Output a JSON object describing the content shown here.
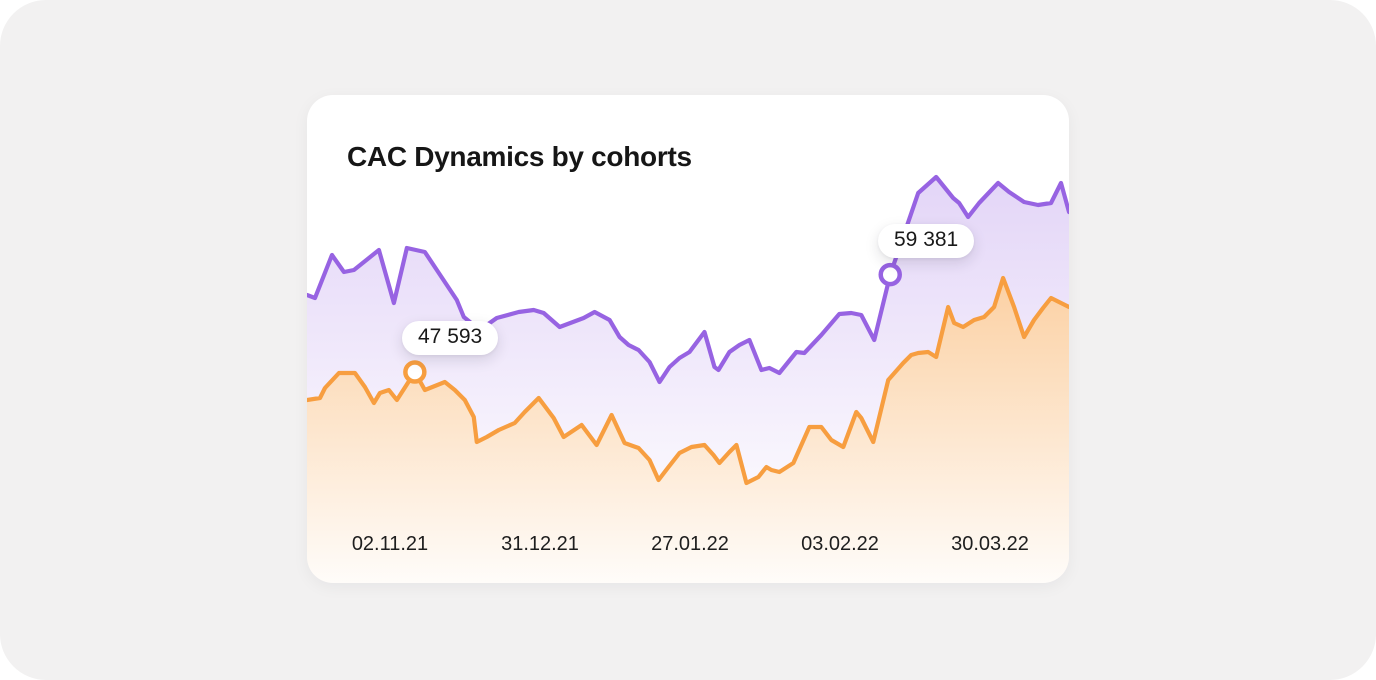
{
  "colors": {
    "page_bg": "#F2F1F1",
    "card_bg": "#FFFFFF",
    "title_text": "#161616",
    "axis_text": "#1E1E1E",
    "purple": "#9763E2",
    "orange": "#F79E40",
    "tooltip_bg": "#FFFFFF",
    "tooltip_text": "#191919"
  },
  "card": {
    "title": "CAC Dynamics by cohorts"
  },
  "chart_data": {
    "type": "area",
    "title": "CAC Dynamics by cohorts",
    "legend": "none",
    "grid": false,
    "y_axis": "hidden",
    "x_tick_labels": [
      "02.11.21",
      "31.12.21",
      "27.01.22",
      "03.02.22",
      "30.03.22"
    ],
    "y_range_estimate": [
      30000,
      72000
    ],
    "series": [
      {
        "name": "cac-upper-cohort",
        "color": "#9763E2",
        "fill_style": "gradient-between-lines",
        "points": [
          [
            0,
            56910
          ],
          [
            8,
            56550
          ],
          [
            25,
            61750
          ],
          [
            37,
            59690
          ],
          [
            47,
            59940
          ],
          [
            72,
            62360
          ],
          [
            87,
            55940
          ],
          [
            100,
            62600
          ],
          [
            118,
            62110
          ],
          [
            130,
            59940
          ],
          [
            140,
            58120
          ],
          [
            150,
            56310
          ],
          [
            157,
            54250
          ],
          [
            173,
            52680
          ],
          [
            190,
            54130
          ],
          [
            212,
            54850
          ],
          [
            227,
            55100
          ],
          [
            237,
            54730
          ],
          [
            253,
            53040
          ],
          [
            277,
            54130
          ],
          [
            288,
            54850
          ],
          [
            303,
            53890
          ],
          [
            313,
            51830
          ],
          [
            322,
            50860
          ],
          [
            332,
            50260
          ],
          [
            343,
            48800
          ],
          [
            353,
            46380
          ],
          [
            363,
            48200
          ],
          [
            373,
            49290
          ],
          [
            383,
            50010
          ],
          [
            398,
            52430
          ],
          [
            408,
            48200
          ],
          [
            412,
            47840
          ],
          [
            423,
            50010
          ],
          [
            433,
            50860
          ],
          [
            443,
            51470
          ],
          [
            455,
            47840
          ],
          [
            463,
            48080
          ],
          [
            473,
            47470
          ],
          [
            490,
            50010
          ],
          [
            498,
            49890
          ],
          [
            515,
            52070
          ],
          [
            533,
            54610
          ],
          [
            545,
            54730
          ],
          [
            555,
            54490
          ],
          [
            568,
            51470
          ],
          [
            584,
            59381
          ],
          [
            612,
            69250
          ],
          [
            630,
            71190
          ],
          [
            647,
            68650
          ],
          [
            653,
            68040
          ],
          [
            662,
            66350
          ],
          [
            673,
            68040
          ],
          [
            692,
            70460
          ],
          [
            703,
            69370
          ],
          [
            718,
            68160
          ],
          [
            732,
            67800
          ],
          [
            745,
            68040
          ],
          [
            755,
            70460
          ],
          [
            763,
            66950
          ]
        ]
      },
      {
        "name": "cac-lower-cohort",
        "color": "#F79E40",
        "fill_style": "gradient-to-bottom",
        "points": [
          [
            0,
            44210
          ],
          [
            13,
            44450
          ],
          [
            18,
            45660
          ],
          [
            32,
            47470
          ],
          [
            48,
            47470
          ],
          [
            58,
            45780
          ],
          [
            67,
            43840
          ],
          [
            73,
            45050
          ],
          [
            82,
            45420
          ],
          [
            90,
            44210
          ],
          [
            108,
            47593
          ],
          [
            118,
            45420
          ],
          [
            138,
            46380
          ],
          [
            148,
            45420
          ],
          [
            158,
            44210
          ],
          [
            167,
            42150
          ],
          [
            170,
            39120
          ],
          [
            180,
            39730
          ],
          [
            192,
            40580
          ],
          [
            208,
            41420
          ],
          [
            218,
            42750
          ],
          [
            232,
            44450
          ],
          [
            247,
            42030
          ],
          [
            257,
            39730
          ],
          [
            275,
            41180
          ],
          [
            290,
            38760
          ],
          [
            305,
            42390
          ],
          [
            318,
            39000
          ],
          [
            332,
            38400
          ],
          [
            343,
            36950
          ],
          [
            352,
            34530
          ],
          [
            362,
            36100
          ],
          [
            373,
            37790
          ],
          [
            385,
            38520
          ],
          [
            398,
            38760
          ],
          [
            407,
            37550
          ],
          [
            413,
            36580
          ],
          [
            423,
            37910
          ],
          [
            430,
            38760
          ],
          [
            440,
            34160
          ],
          [
            452,
            34890
          ],
          [
            460,
            36100
          ],
          [
            465,
            35740
          ],
          [
            473,
            35490
          ],
          [
            487,
            36580
          ],
          [
            503,
            40940
          ],
          [
            515,
            40940
          ],
          [
            525,
            39370
          ],
          [
            537,
            38520
          ],
          [
            550,
            42750
          ],
          [
            555,
            42030
          ],
          [
            567,
            39120
          ],
          [
            582,
            46630
          ],
          [
            597,
            48680
          ],
          [
            605,
            49650
          ],
          [
            612,
            49890
          ],
          [
            622,
            50010
          ],
          [
            630,
            49410
          ],
          [
            642,
            55460
          ],
          [
            648,
            53520
          ],
          [
            657,
            53040
          ],
          [
            668,
            53890
          ],
          [
            678,
            54250
          ],
          [
            688,
            55460
          ],
          [
            697,
            58970
          ],
          [
            708,
            55460
          ],
          [
            718,
            51830
          ],
          [
            728,
            53890
          ],
          [
            737,
            55340
          ],
          [
            745,
            56550
          ],
          [
            755,
            55940
          ],
          [
            763,
            55460
          ]
        ]
      }
    ],
    "annotations": [
      {
        "label": "59 381",
        "value": 59381,
        "x": 584,
        "series": 0
      },
      {
        "label": "47 593",
        "value": 47593,
        "x": 108,
        "series": 1
      }
    ]
  }
}
